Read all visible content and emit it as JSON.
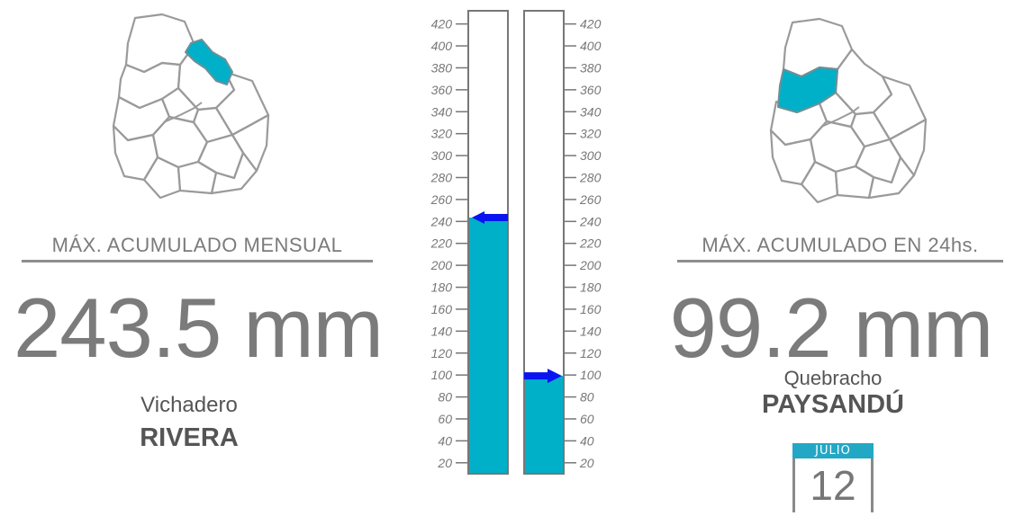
{
  "left": {
    "heading": "MÁX. ACUMULADO MENSUAL",
    "value": "243.5 mm",
    "station": "Vichadero",
    "department": "RIVERA",
    "map_icon": "uruguay-map-rivera-highlighted-icon"
  },
  "right": {
    "heading": "MÁX. ACUMULADO EN 24hs.",
    "value": "99.2 mm",
    "station": "Quebracho",
    "department": "PAYSANDÚ",
    "map_icon": "uruguay-map-paysandu-highlighted-icon"
  },
  "calendar": {
    "month": "JULIO",
    "day": "12"
  },
  "colors": {
    "fill": "#00b0c8",
    "arrow": "#0a14f0",
    "text": "#7b7b7b",
    "map_stroke": "#9a9a9a"
  },
  "chart_data": {
    "type": "bar",
    "ticks": [
      20,
      40,
      60,
      80,
      100,
      120,
      140,
      160,
      180,
      200,
      220,
      240,
      260,
      280,
      300,
      320,
      340,
      360,
      380,
      400,
      420
    ],
    "ylim": [
      10,
      432
    ],
    "series": [
      {
        "value": 243.5,
        "marker": "left-arrow"
      },
      {
        "value": 99.2,
        "marker": "right-arrow"
      }
    ],
    "grid": false
  }
}
